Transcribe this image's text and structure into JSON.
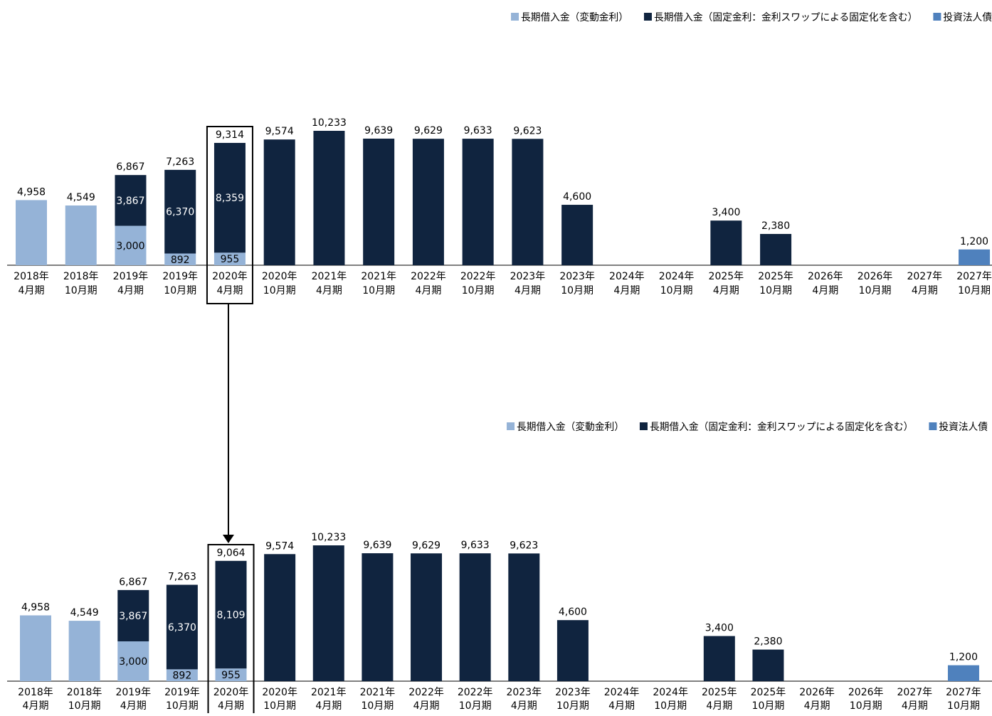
{
  "colors": {
    "variable": "#95b3d7",
    "fixed": "#10243f",
    "bond": "#4f81bd",
    "axis": "#000000",
    "highlight_box": "#000000",
    "arrow": "#000000"
  },
  "chart_data": [
    {
      "type": "bar",
      "stacked": true,
      "legend_position": "top-right",
      "legend": [
        "長期借入金（変動金利）",
        "長期借入金（固定金利：金利スワップによる固定化を含む）",
        "投資法人債"
      ],
      "categories": [
        [
          "2018年",
          "4月期"
        ],
        [
          "2018年",
          "10月期"
        ],
        [
          "2019年",
          "4月期"
        ],
        [
          "2019年",
          "10月期"
        ],
        [
          "2020年",
          "4月期"
        ],
        [
          "2020年",
          "10月期"
        ],
        [
          "2021年",
          "4月期"
        ],
        [
          "2021年",
          "10月期"
        ],
        [
          "2022年",
          "4月期"
        ],
        [
          "2022年",
          "10月期"
        ],
        [
          "2023年",
          "4月期"
        ],
        [
          "2023年",
          "10月期"
        ],
        [
          "2024年",
          "4月期"
        ],
        [
          "2024年",
          "10月期"
        ],
        [
          "2025年",
          "4月期"
        ],
        [
          "2025年",
          "10月期"
        ],
        [
          "2026年",
          "4月期"
        ],
        [
          "2026年",
          "10月期"
        ],
        [
          "2027年",
          "4月期"
        ],
        [
          "2027年",
          "10月期"
        ]
      ],
      "series": [
        {
          "name": "長期借入金（変動金利）",
          "color_key": "variable",
          "values": [
            4958,
            4549,
            3000,
            892,
            955,
            0,
            0,
            0,
            0,
            0,
            0,
            0,
            0,
            0,
            0,
            0,
            0,
            0,
            0,
            0
          ]
        },
        {
          "name": "長期借入金（固定金利：金利スワップによる固定化を含む）",
          "color_key": "fixed",
          "values": [
            0,
            0,
            3867,
            6370,
            8359,
            9574,
            10233,
            9639,
            9629,
            9633,
            9623,
            4600,
            0,
            0,
            3400,
            2380,
            0,
            0,
            0,
            0
          ]
        },
        {
          "name": "投資法人債",
          "color_key": "bond",
          "values": [
            0,
            0,
            0,
            0,
            0,
            0,
            0,
            0,
            0,
            0,
            0,
            0,
            0,
            0,
            0,
            0,
            0,
            0,
            0,
            1200
          ]
        }
      ],
      "totals": [
        "4,958",
        "4,549",
        "6,867",
        "7,263",
        "9,314",
        "9,574",
        "10,233",
        "9,639",
        "9,629",
        "9,633",
        "9,623",
        "4,600",
        "",
        "",
        "3,400",
        "2,380",
        "",
        "",
        "",
        "1,200"
      ],
      "segment_labels": [
        [
          "",
          "",
          "3,000",
          "892",
          "955",
          "",
          "",
          "",
          "",
          "",
          "",
          "",
          "",
          "",
          "",
          "",
          "",
          "",
          "",
          ""
        ],
        [
          "",
          "",
          "3,867",
          "6,370",
          "8,359",
          "",
          "",
          "",
          "",
          "",
          "",
          "",
          "",
          "",
          "",
          "",
          "",
          "",
          "",
          ""
        ]
      ],
      "highlight_index": 4
    },
    {
      "type": "bar",
      "stacked": true,
      "legend_position": "top-right",
      "legend": [
        "長期借入金（変動金利）",
        "長期借入金（固定金利：金利スワップによる固定化を含む）",
        "投資法人債"
      ],
      "categories": [
        [
          "2018年",
          "4月期"
        ],
        [
          "2018年",
          "10月期"
        ],
        [
          "2019年",
          "4月期"
        ],
        [
          "2019年",
          "10月期"
        ],
        [
          "2020年",
          "4月期"
        ],
        [
          "2020年",
          "10月期"
        ],
        [
          "2021年",
          "4月期"
        ],
        [
          "2021年",
          "10月期"
        ],
        [
          "2022年",
          "4月期"
        ],
        [
          "2022年",
          "10月期"
        ],
        [
          "2023年",
          "4月期"
        ],
        [
          "2023年",
          "10月期"
        ],
        [
          "2024年",
          "4月期"
        ],
        [
          "2024年",
          "10月期"
        ],
        [
          "2025年",
          "4月期"
        ],
        [
          "2025年",
          "10月期"
        ],
        [
          "2026年",
          "4月期"
        ],
        [
          "2026年",
          "10月期"
        ],
        [
          "2027年",
          "4月期"
        ],
        [
          "2027年",
          "10月期"
        ]
      ],
      "series": [
        {
          "name": "長期借入金（変動金利）",
          "color_key": "variable",
          "values": [
            4958,
            4549,
            3000,
            892,
            955,
            0,
            0,
            0,
            0,
            0,
            0,
            0,
            0,
            0,
            0,
            0,
            0,
            0,
            0,
            0
          ]
        },
        {
          "name": "長期借入金（固定金利：金利スワップによる固定化を含む）",
          "color_key": "fixed",
          "values": [
            0,
            0,
            3867,
            6370,
            8109,
            9574,
            10233,
            9639,
            9629,
            9633,
            9623,
            4600,
            0,
            0,
            3400,
            2380,
            0,
            0,
            0,
            0
          ]
        },
        {
          "name": "投資法人債",
          "color_key": "bond",
          "values": [
            0,
            0,
            0,
            0,
            0,
            0,
            0,
            0,
            0,
            0,
            0,
            0,
            0,
            0,
            0,
            0,
            0,
            0,
            0,
            1200
          ]
        }
      ],
      "totals": [
        "4,958",
        "4,549",
        "6,867",
        "7,263",
        "9,064",
        "9,574",
        "10,233",
        "9,639",
        "9,629",
        "9,633",
        "9,623",
        "4,600",
        "",
        "",
        "3,400",
        "2,380",
        "",
        "",
        "",
        "1,200"
      ],
      "segment_labels": [
        [
          "",
          "",
          "3,000",
          "892",
          "955",
          "",
          "",
          "",
          "",
          "",
          "",
          "",
          "",
          "",
          "",
          "",
          "",
          "",
          "",
          ""
        ],
        [
          "",
          "",
          "3,867",
          "6,370",
          "8,109",
          "",
          "",
          "",
          "",
          "",
          "",
          "",
          "",
          "",
          "",
          "",
          "",
          "",
          "",
          ""
        ]
      ],
      "highlight_index": 4
    }
  ]
}
